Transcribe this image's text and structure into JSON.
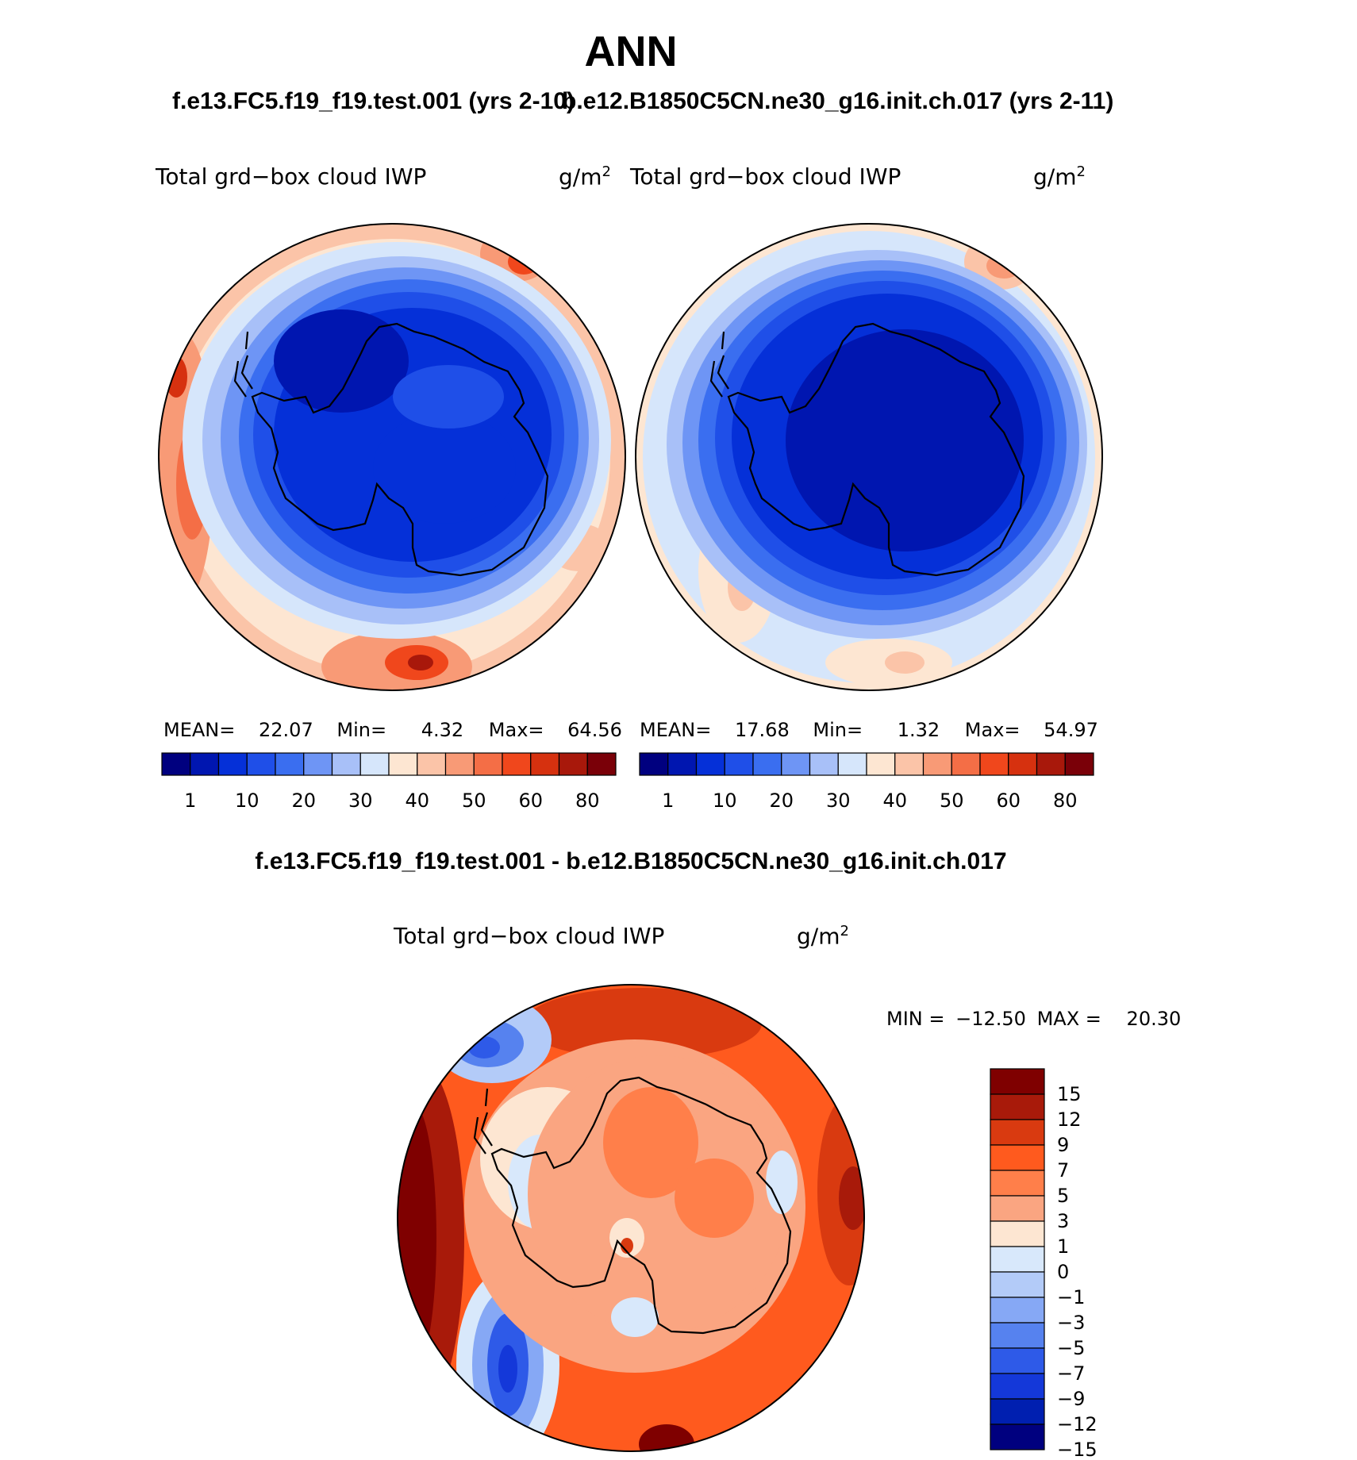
{
  "page": {
    "title": "ANN",
    "panel_titles": {
      "left": "f.e13.FC5.f19_f19.test.001 (yrs 2-10)",
      "right": "b.e12.B1850C5CN.ne30_g16.init.ch.017 (yrs 2-11)"
    },
    "diff_title": "f.e13.FC5.f19_f19.test.001 - b.e12.B1850C5CN.ne30_g16.init.ch.017"
  },
  "panels": {
    "left": {
      "variable": "Total grd−box cloud IWP",
      "units": "g/m",
      "units_sup": "2",
      "mean_label": "MEAN=",
      "mean": "22.07",
      "min_label": "Min=",
      "min": "4.32",
      "max_label": "Max=",
      "max": "64.56"
    },
    "right": {
      "variable": "Total grd−box cloud IWP",
      "units": "g/m",
      "units_sup": "2",
      "mean_label": "MEAN=",
      "mean": "17.68",
      "min_label": "Min=",
      "min": "1.32",
      "max_label": "Max=",
      "max": "54.97"
    },
    "diff": {
      "variable": "Total grd−box cloud IWP",
      "units": "g/m",
      "units_sup": "2",
      "min_label": "MIN =",
      "min": "−12.50",
      "max_label": "MAX =",
      "max": "20.30"
    }
  },
  "colorbars": {
    "abs_colors": [
      "#00007f",
      "#0016b0",
      "#0530d8",
      "#1f4fe8",
      "#3a6ef0",
      "#6e95f5",
      "#a8c0f8",
      "#d6e6fb",
      "#fde6d2",
      "#fbc4a8",
      "#f89a76",
      "#f46e46",
      "#f0471c",
      "#d6310f",
      "#a8180b",
      "#7a0008"
    ],
    "abs_ticks": [
      "1",
      "10",
      "20",
      "30",
      "40",
      "50",
      "60",
      "80"
    ],
    "diff_colors": [
      "#7f0000",
      "#a81a0a",
      "#d93a10",
      "#ff5a1e",
      "#ff7f4a",
      "#faa581",
      "#fde6d2",
      "#d8e8fb",
      "#b3cbf8",
      "#86a8f5",
      "#5682ef",
      "#2e5ae8",
      "#1438d9",
      "#001fb0",
      "#00007f"
    ],
    "diff_ticks": [
      "15",
      "12",
      "9",
      "7",
      "5",
      "3",
      "1",
      "0",
      "−1",
      "−3",
      "−5",
      "−7",
      "−9",
      "−12",
      "−15"
    ]
  },
  "chart_data": [
    {
      "type": "heatmap",
      "title": "f.e13.FC5.f19_f19.test.001 (yrs 2-10)",
      "variable": "Total grd-box cloud IWP",
      "units": "g/m2",
      "projection": "south polar stereographic",
      "mean": 22.07,
      "min": 4.32,
      "max": 64.56,
      "levels": [
        1,
        10,
        20,
        30,
        40,
        50,
        60,
        80
      ]
    },
    {
      "type": "heatmap",
      "title": "b.e12.B1850C5CN.ne30_g16.init.ch.017 (yrs 2-11)",
      "variable": "Total grd-box cloud IWP",
      "units": "g/m2",
      "projection": "south polar stereographic",
      "mean": 17.68,
      "min": 1.32,
      "max": 54.97,
      "levels": [
        1,
        10,
        20,
        30,
        40,
        50,
        60,
        80
      ]
    },
    {
      "type": "heatmap",
      "title": "f.e13.FC5.f19_f19.test.001 - b.e12.B1850C5CN.ne30_g16.init.ch.017",
      "variable": "Total grd-box cloud IWP",
      "units": "g/m2",
      "projection": "south polar stereographic",
      "min": -12.5,
      "max": 20.3,
      "levels": [
        15,
        12,
        9,
        7,
        5,
        3,
        1,
        0,
        -1,
        -3,
        -5,
        -7,
        -9,
        -12,
        -15
      ]
    }
  ]
}
